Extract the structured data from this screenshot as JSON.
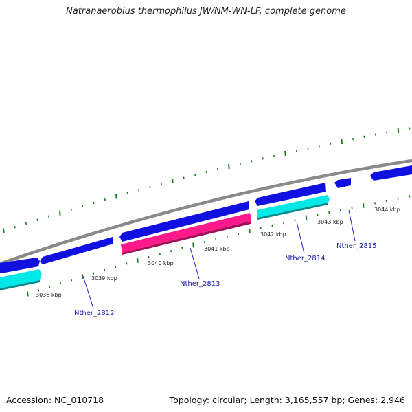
{
  "title": "Natranaerobius thermophilus JW/NM-WN-LF, complete genome",
  "footer": {
    "accession": "Accession: NC_010718",
    "summary": "Topology: circular; Length: 3,165,557 bp; Genes: 2,946"
  },
  "colors": {
    "backbone": "#8a8a8a",
    "forward_cds": "#1010e0",
    "reverse_cds": "#00e8e8",
    "highlight_cds": "#ff1a8c",
    "tick": "#1a7a1a",
    "label_line": "#2020c0"
  },
  "kbp_labels": [
    "3038 kbp",
    "3039 kbp",
    "3040 kbp",
    "3041 kbp",
    "3042 kbp",
    "3043 kbp",
    "3044 kbp"
  ],
  "gene_labels": [
    "Nther_2812",
    "Nther_2813",
    "Nther_2814",
    "Nther_2815"
  ]
}
